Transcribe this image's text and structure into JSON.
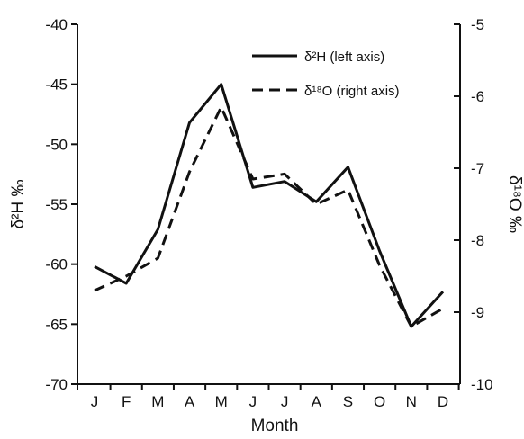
{
  "chart_data": {
    "type": "line",
    "categories": [
      "J",
      "F",
      "M",
      "A",
      "M",
      "J",
      "J",
      "A",
      "S",
      "O",
      "N",
      "D"
    ],
    "series": [
      {
        "name": "δ²H (left axis)",
        "axis": "left",
        "style": "solid",
        "values": [
          -60.2,
          -61.6,
          -57.1,
          -48.2,
          -45.0,
          -53.6,
          -53.1,
          -54.8,
          -51.9,
          -58.9,
          -65.2,
          -62.3
        ]
      },
      {
        "name": "δ¹⁸O (right axis)",
        "axis": "right",
        "style": "dashed",
        "values": [
          -8.7,
          -8.5,
          -8.25,
          -7.05,
          -6.15,
          -7.15,
          -7.08,
          -7.5,
          -7.3,
          -8.35,
          -9.2,
          -8.95
        ]
      }
    ],
    "xlabel": "Month",
    "ylabel_left": "δ²H ‰",
    "ylabel_right": "δ¹⁸O ‰",
    "ylim_left": [
      -70,
      -40
    ],
    "yticks_left": [
      -70,
      -65,
      -60,
      -55,
      -50,
      -45,
      -40
    ],
    "ylim_right": [
      -10,
      -5
    ],
    "yticks_right": [
      -10,
      -9,
      -8,
      -7,
      -6,
      -5
    ],
    "grid": false,
    "legend_position": "top-right",
    "line_color": "#111111"
  }
}
